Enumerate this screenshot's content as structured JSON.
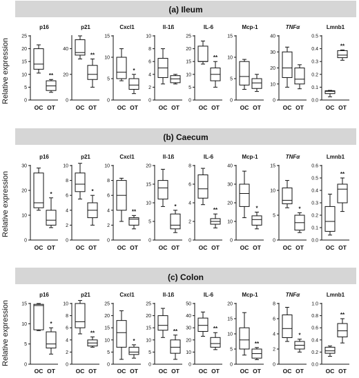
{
  "chart_data": [
    {
      "type": "box",
      "title": "(a) Ileum",
      "ylabel": "Relative expression",
      "categories": [
        "OC",
        "OT"
      ],
      "panels": [
        {
          "gene": "p16",
          "gene_italic": false,
          "ylim": [
            0,
            25
          ],
          "ticks": [
            0,
            5,
            10,
            15,
            20,
            25
          ],
          "tick_labels": [
            "0",
            "5",
            "10",
            "15",
            "20",
            "25"
          ],
          "boxes": [
            {
              "min": 10.5,
              "q1": 12,
              "median": 14,
              "q3": 20,
              "max": 21.5
            },
            {
              "min": 3,
              "q1": 3.7,
              "median": 5.5,
              "q3": 7.5,
              "max": 8
            }
          ],
          "sig": "**"
        },
        {
          "gene": "p21",
          "gene_italic": false,
          "ylim": [
            0,
            50
          ],
          "ticks": [
            0,
            20,
            40
          ],
          "tick_labels": [
            "0",
            "20",
            "40"
          ],
          "boxes": [
            {
              "min": 32,
              "q1": 35,
              "median": 37,
              "q3": 47,
              "max": 50
            },
            {
              "min": 10,
              "q1": 16,
              "median": 20,
              "q3": 27,
              "max": 32
            }
          ],
          "sig": "**"
        },
        {
          "gene": "Cxcl1",
          "gene_italic": false,
          "ylim": [
            0,
            15
          ],
          "ticks": [
            0,
            5,
            10,
            15
          ],
          "tick_labels": [
            "0",
            "5",
            "10",
            "15"
          ],
          "boxes": [
            {
              "min": 4.5,
              "q1": 5,
              "median": 6.5,
              "q3": 10,
              "max": 12
            },
            {
              "min": 1.5,
              "q1": 2.5,
              "median": 3.5,
              "q3": 5,
              "max": 6
            }
          ],
          "sig": "*"
        },
        {
          "gene": "Il-1ß",
          "gene_italic": false,
          "ylim": [
            0,
            10
          ],
          "ticks": [
            0,
            2,
            4,
            6,
            8,
            10
          ],
          "tick_labels": [
            "0",
            "2",
            "4",
            "6",
            "8",
            "10"
          ],
          "boxes": [
            {
              "min": 2.5,
              "q1": 3.5,
              "median": 5,
              "q3": 6.5,
              "max": 8
            },
            {
              "min": 2.5,
              "q1": 2.7,
              "median": 3.3,
              "q3": 3.8,
              "max": 4
            }
          ],
          "sig": ""
        },
        {
          "gene": "IL-6",
          "gene_italic": false,
          "ylim": [
            0,
            25
          ],
          "ticks": [
            0,
            5,
            10,
            15,
            20,
            25
          ],
          "tick_labels": [
            "0",
            "5",
            "10",
            "15",
            "20",
            "25"
          ],
          "boxes": [
            {
              "min": 14,
              "q1": 15,
              "median": 15,
              "q3": 21,
              "max": 23
            },
            {
              "min": 5,
              "q1": 7.5,
              "median": 10,
              "q3": 12.5,
              "max": 15
            }
          ],
          "sig": "**"
        },
        {
          "gene": "Mcp-1",
          "gene_italic": false,
          "ylim": [
            0,
            15
          ],
          "ticks": [
            0,
            5,
            10,
            15
          ],
          "tick_labels": [
            "0",
            "5",
            "10",
            "15"
          ],
          "boxes": [
            {
              "min": 2.5,
              "q1": 3.5,
              "median": 5.5,
              "q3": 9,
              "max": 9.5
            },
            {
              "min": 2,
              "q1": 2.7,
              "median": 4,
              "q3": 5,
              "max": 6
            }
          ],
          "sig": ""
        },
        {
          "gene": "TNFα",
          "gene_italic": true,
          "ylim": [
            0,
            40
          ],
          "ticks": [
            0,
            10,
            20,
            30,
            40
          ],
          "tick_labels": [
            "0",
            "10",
            "20",
            "30",
            "40"
          ],
          "boxes": [
            {
              "min": 8,
              "q1": 14,
              "median": 20,
              "q3": 30,
              "max": 33
            },
            {
              "min": 7,
              "q1": 10,
              "median": 13,
              "q3": 20,
              "max": 22
            }
          ],
          "sig": ""
        },
        {
          "gene": "Lmnb1",
          "gene_italic": false,
          "ylim": [
            0,
            0.5
          ],
          "ticks": [
            0,
            0.1,
            0.2,
            0.3,
            0.4,
            0.5
          ],
          "tick_labels": [
            "0.0",
            "0.1",
            "0.2",
            "0.3",
            "0.4",
            "0.5"
          ],
          "boxes": [
            {
              "min": 0.025,
              "q1": 0.05,
              "median": 0.068,
              "q3": 0.072,
              "max": 0.075
            },
            {
              "min": 0.31,
              "q1": 0.33,
              "median": 0.35,
              "q3": 0.385,
              "max": 0.39
            }
          ],
          "sig": "**"
        }
      ]
    },
    {
      "type": "box",
      "title": "(b) Caecum",
      "ylabel": "Relative expression",
      "categories": [
        "OC",
        "OT"
      ],
      "panels": [
        {
          "gene": "p16",
          "gene_italic": false,
          "ylim": [
            0,
            30
          ],
          "ticks": [
            0,
            10,
            20,
            30
          ],
          "tick_labels": [
            "0",
            "10",
            "20",
            "30"
          ],
          "boxes": [
            {
              "min": 12,
              "q1": 13,
              "median": 15,
              "q3": 27,
              "max": 29
            },
            {
              "min": 5,
              "q1": 6,
              "median": 8,
              "q3": 12,
              "max": 17
            }
          ],
          "sig": "*"
        },
        {
          "gene": "p21",
          "gene_italic": false,
          "ylim": [
            0,
            10
          ],
          "ticks": [
            0,
            2,
            4,
            6,
            8,
            10
          ],
          "tick_labels": [
            "0",
            "2",
            "4",
            "6",
            "8",
            "10"
          ],
          "boxes": [
            {
              "min": 5.5,
              "q1": 6.5,
              "median": 7.5,
              "q3": 9,
              "max": 10.3
            },
            {
              "min": 2,
              "q1": 3,
              "median": 4,
              "q3": 5,
              "max": 6
            }
          ],
          "sig": "*"
        },
        {
          "gene": "Cxcl1",
          "gene_italic": false,
          "ylim": [
            0,
            10
          ],
          "ticks": [
            0,
            2,
            4,
            6,
            8,
            10
          ],
          "tick_labels": [
            "0",
            "2",
            "4",
            "6",
            "8",
            "10"
          ],
          "boxes": [
            {
              "min": 2.5,
              "q1": 4,
              "median": 6,
              "q3": 8,
              "max": 8.3
            },
            {
              "min": 1.5,
              "q1": 2,
              "median": 2.8,
              "q3": 3,
              "max": 3.3
            }
          ],
          "sig": "**"
        },
        {
          "gene": "Il-1ß",
          "gene_italic": false,
          "ylim": [
            0,
            20
          ],
          "ticks": [
            0,
            5,
            10,
            15,
            20
          ],
          "tick_labels": [
            "0",
            "5",
            "10",
            "15",
            "20"
          ],
          "boxes": [
            {
              "min": 9,
              "q1": 11,
              "median": 14,
              "q3": 16,
              "max": 19
            },
            {
              "min": 2,
              "q1": 3,
              "median": 4,
              "q3": 7,
              "max": 8
            }
          ],
          "sig": "*"
        },
        {
          "gene": "IL-6",
          "gene_italic": false,
          "ylim": [
            0,
            8
          ],
          "ticks": [
            0,
            2,
            4,
            6,
            8
          ],
          "tick_labels": [
            "0",
            "2",
            "4",
            "6",
            "8"
          ],
          "boxes": [
            {
              "min": 3.8,
              "q1": 4.5,
              "median": 5.5,
              "q3": 7,
              "max": 7.7
            },
            {
              "min": 1.3,
              "q1": 1.7,
              "median": 2,
              "q3": 2.3,
              "max": 2.8
            }
          ],
          "sig": "**"
        },
        {
          "gene": "Mcp-1",
          "gene_italic": false,
          "ylim": [
            0,
            40
          ],
          "ticks": [
            0,
            10,
            20,
            30,
            40
          ],
          "tick_labels": [
            "0",
            "10",
            "20",
            "30",
            "40"
          ],
          "boxes": [
            {
              "min": 12,
              "q1": 18,
              "median": 25,
              "q3": 30,
              "max": 37
            },
            {
              "min": 6,
              "q1": 8,
              "median": 11,
              "q3": 13,
              "max": 15
            }
          ],
          "sig": "*"
        },
        {
          "gene": "TNFα",
          "gene_italic": true,
          "ylim": [
            0,
            15
          ],
          "ticks": [
            0,
            5,
            10,
            15
          ],
          "tick_labels": [
            "0",
            "5",
            "10",
            "15"
          ],
          "boxes": [
            {
              "min": 6.5,
              "q1": 7.3,
              "median": 8,
              "q3": 10.5,
              "max": 12
            },
            {
              "min": 1.5,
              "q1": 2,
              "median": 3.5,
              "q3": 5,
              "max": 5.5
            }
          ],
          "sig": "*"
        },
        {
          "gene": "Lmnb1",
          "gene_italic": false,
          "ylim": [
            0,
            0.6
          ],
          "ticks": [
            0,
            0.1,
            0.2,
            0.3,
            0.4,
            0.5,
            0.6
          ],
          "tick_labels": [
            "0.0",
            "0.1",
            "0.2",
            "0.3",
            "0.4",
            "0.5",
            "0.6"
          ],
          "boxes": [
            {
              "min": 0.04,
              "q1": 0.07,
              "median": 0.15,
              "q3": 0.27,
              "max": 0.37
            },
            {
              "min": 0.23,
              "q1": 0.3,
              "median": 0.41,
              "q3": 0.45,
              "max": 0.5
            }
          ],
          "sig": "**"
        }
      ]
    },
    {
      "type": "box",
      "title": "(c) Colon",
      "ylabel": "Relative expression",
      "categories": [
        "OC",
        "OT"
      ],
      "panels": [
        {
          "gene": "p16",
          "gene_italic": false,
          "ylim": [
            0,
            15
          ],
          "ticks": [
            0,
            5,
            10,
            15
          ],
          "tick_labels": [
            "0",
            "5",
            "10",
            "15"
          ],
          "boxes": [
            {
              "min": 8.3,
              "q1": 8.5,
              "median": 14.5,
              "q3": 14.8,
              "max": 15
            },
            {
              "min": 2.5,
              "q1": 4,
              "median": 5,
              "q3": 8,
              "max": 9
            }
          ],
          "sig": "*"
        },
        {
          "gene": "p21",
          "gene_italic": false,
          "ylim": [
            0,
            10
          ],
          "ticks": [
            0,
            2,
            4,
            6,
            8,
            10
          ],
          "tick_labels": [
            "0",
            "2",
            "4",
            "6",
            "8",
            "10"
          ],
          "boxes": [
            {
              "min": 5,
              "q1": 6,
              "median": 7,
              "q3": 10,
              "max": 10.5
            },
            {
              "min": 2.8,
              "q1": 3,
              "median": 3.5,
              "q3": 4,
              "max": 4.5
            }
          ],
          "sig": "**"
        },
        {
          "gene": "Cxcl1",
          "gene_italic": false,
          "ylim": [
            0,
            25
          ],
          "ticks": [
            0,
            5,
            10,
            15,
            20,
            25
          ],
          "tick_labels": [
            "0",
            "5",
            "10",
            "15",
            "20",
            "25"
          ],
          "boxes": [
            {
              "min": 2,
              "q1": 7,
              "median": 13,
              "q3": 18,
              "max": 22
            },
            {
              "min": 2.5,
              "q1": 4,
              "median": 5,
              "q3": 7,
              "max": 8
            }
          ],
          "sig": "*"
        },
        {
          "gene": "Il-1ß",
          "gene_italic": false,
          "ylim": [
            0,
            25
          ],
          "ticks": [
            0,
            5,
            10,
            15,
            20,
            25
          ],
          "tick_labels": [
            "0",
            "5",
            "10",
            "15",
            "20",
            "25"
          ],
          "boxes": [
            {
              "min": 11,
              "q1": 14,
              "median": 16,
              "q3": 20,
              "max": 23
            },
            {
              "min": 2,
              "q1": 4.5,
              "median": 7,
              "q3": 10,
              "max": 12
            }
          ],
          "sig": "**"
        },
        {
          "gene": "IL-6",
          "gene_italic": false,
          "ylim": [
            0,
            50
          ],
          "ticks": [
            0,
            10,
            20,
            30,
            40,
            50
          ],
          "tick_labels": [
            "0",
            "10",
            "20",
            "30",
            "40",
            "50"
          ],
          "boxes": [
            {
              "min": 23,
              "q1": 27,
              "median": 32,
              "q3": 38,
              "max": 43
            },
            {
              "min": 12,
              "q1": 14,
              "median": 17,
              "q3": 22,
              "max": 26
            }
          ],
          "sig": "**"
        },
        {
          "gene": "Mcp-1",
          "gene_italic": false,
          "ylim": [
            0,
            20
          ],
          "ticks": [
            0,
            5,
            10,
            15,
            20
          ],
          "tick_labels": [
            "0",
            "5",
            "10",
            "15",
            "20"
          ],
          "boxes": [
            {
              "min": 3,
              "q1": 5,
              "median": 8,
              "q3": 12,
              "max": 17
            },
            {
              "min": 1.5,
              "q1": 2,
              "median": 3.5,
              "q3": 5,
              "max": 5.5
            }
          ],
          "sig": "**"
        },
        {
          "gene": "TNFα",
          "gene_italic": true,
          "ylim": [
            0,
            8
          ],
          "ticks": [
            0,
            2,
            4,
            6,
            8
          ],
          "tick_labels": [
            "0",
            "2",
            "4",
            "6",
            "8"
          ],
          "boxes": [
            {
              "min": 3,
              "q1": 3.5,
              "median": 4.7,
              "q3": 6.5,
              "max": 7.5
            },
            {
              "min": 1.6,
              "q1": 2,
              "median": 2.5,
              "q3": 3,
              "max": 3.3
            }
          ],
          "sig": "*"
        },
        {
          "gene": "Lmnb1",
          "gene_italic": false,
          "ylim": [
            0,
            1.0
          ],
          "ticks": [
            0,
            0.2,
            0.4,
            0.6,
            0.8,
            1.0
          ],
          "tick_labels": [
            "0.0",
            "0.2",
            "0.4",
            "0.6",
            "0.8",
            "1.0"
          ],
          "boxes": [
            {
              "min": 0.13,
              "q1": 0.18,
              "median": 0.22,
              "q3": 0.28,
              "max": 0.3
            },
            {
              "min": 0.35,
              "q1": 0.45,
              "median": 0.55,
              "q3": 0.67,
              "max": 0.75
            }
          ],
          "sig": "**"
        }
      ]
    }
  ]
}
